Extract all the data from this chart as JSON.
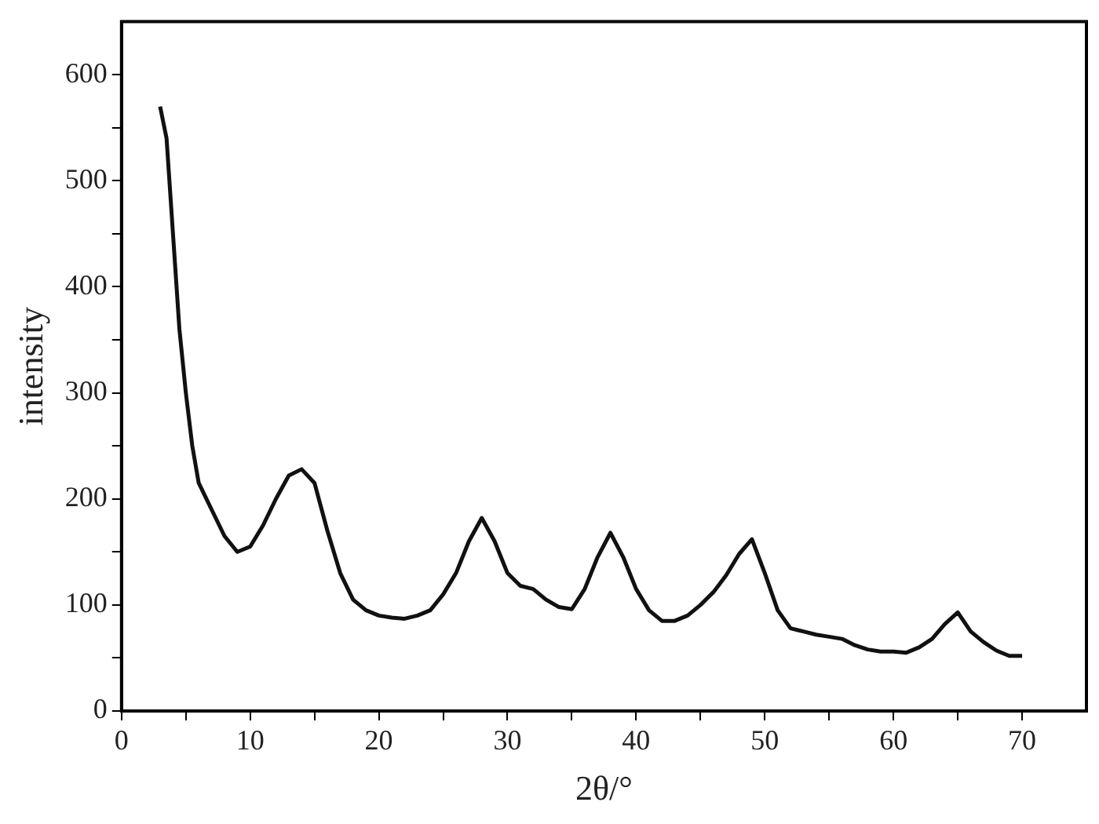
{
  "chart_data": {
    "type": "line",
    "xlabel": "2θ/°",
    "ylabel": "intensity",
    "xlim": [
      0,
      75
    ],
    "ylim": [
      0,
      650
    ],
    "xticks": [
      0,
      {
        "value": 5,
        "label": null
      },
      10,
      {
        "value": 15,
        "label": null
      },
      20,
      {
        "value": 25,
        "label": null
      },
      30,
      {
        "value": 35,
        "label": null
      },
      40,
      {
        "value": 45,
        "label": null
      },
      50,
      {
        "value": 55,
        "label": null
      },
      60,
      {
        "value": 65,
        "label": null
      },
      70
    ],
    "yticks": [
      0,
      {
        "value": 50,
        "label": null
      },
      100,
      {
        "value": 150,
        "label": null
      },
      200,
      {
        "value": 250,
        "label": null
      },
      300,
      {
        "value": 350,
        "label": null
      },
      400,
      {
        "value": 450,
        "label": null
      },
      500,
      {
        "value": 550,
        "label": null
      },
      600
    ],
    "grid": false,
    "legend": false,
    "marker": "none",
    "line_style": "solid",
    "series": [
      {
        "color": "#111111",
        "x": [
          3,
          3.5,
          4,
          4.5,
          5,
          5.5,
          6,
          7,
          8,
          9,
          10,
          11,
          12,
          13,
          14,
          15,
          16,
          17,
          18,
          19,
          20,
          21,
          22,
          23,
          24,
          25,
          26,
          27,
          28,
          29,
          30,
          31,
          32,
          33,
          34,
          35,
          36,
          37,
          38,
          39,
          40,
          41,
          42,
          43,
          44,
          45,
          46,
          47,
          48,
          49,
          50,
          51,
          52,
          53,
          54,
          55,
          56,
          57,
          58,
          59,
          60,
          61,
          62,
          63,
          64,
          65,
          66,
          67,
          68,
          69,
          70
        ],
        "values": [
          570,
          540,
          450,
          360,
          300,
          250,
          215,
          190,
          165,
          150,
          155,
          175,
          200,
          222,
          228,
          215,
          170,
          130,
          105,
          95,
          90,
          88,
          87,
          90,
          95,
          110,
          130,
          160,
          182,
          160,
          130,
          118,
          115,
          105,
          98,
          96,
          115,
          145,
          168,
          145,
          115,
          95,
          85,
          85,
          90,
          100,
          112,
          128,
          148,
          162,
          130,
          95,
          78,
          75,
          72,
          70,
          68,
          62,
          58,
          56,
          56,
          55,
          60,
          68,
          82,
          93,
          75,
          65,
          57,
          52,
          52
        ]
      }
    ]
  }
}
